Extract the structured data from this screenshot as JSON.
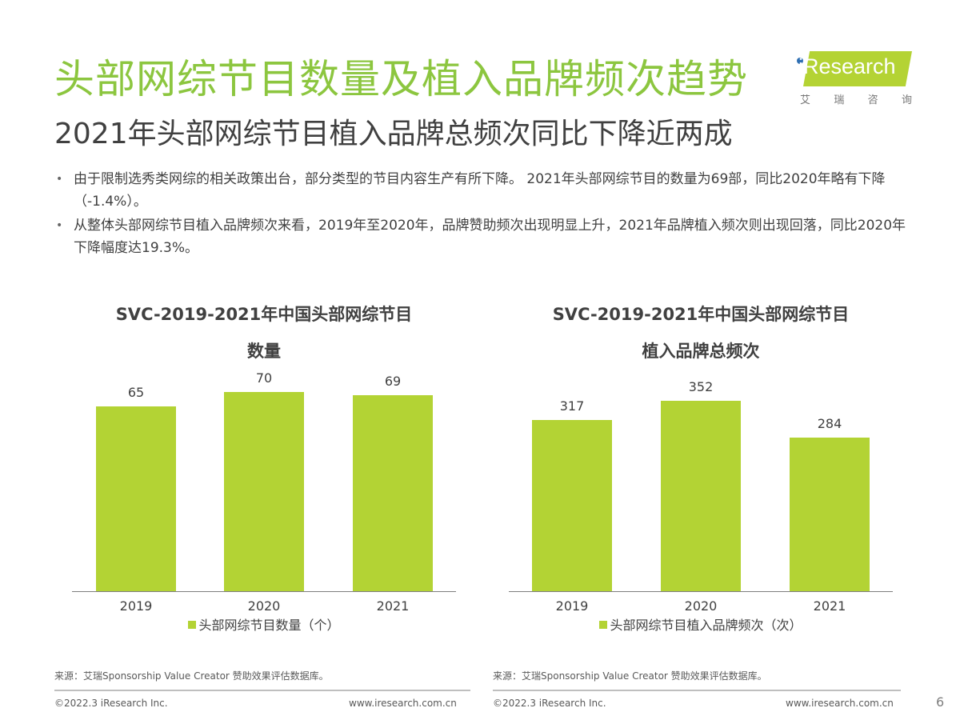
{
  "header": {
    "title": "头部网综节目数量及植入品牌频次趋势",
    "subtitle": "2021年头部网综节目植入品牌总频次同比下降近两成"
  },
  "logo": {
    "brand": "iResearch",
    "chinese_chars": [
      "艾",
      "瑞",
      "咨",
      "询"
    ]
  },
  "bullets": [
    "由于限制选秀类网综的相关政策出台，部分类型的节目内容生产有所下降。 2021年头部网综节目的数量为69部，同比2020年略有下降（-1.4%）。",
    "从整体头部网综节目植入品牌频次来看，2019年至2020年，品牌赞助频次出现明显上升，2021年品牌植入频次则出现回落，同比2020年下降幅度达19.3%。"
  ],
  "chart_data": [
    {
      "type": "bar",
      "title": "SVC-2019-2021年中国头部网综节目数量",
      "title_lines": [
        "SVC-2019-2021年中国头部网综节目",
        "数量"
      ],
      "categories": [
        "2019",
        "2020",
        "2021"
      ],
      "series": [
        {
          "name": "头部网综节目数量（个）",
          "values": [
            65,
            70,
            69
          ],
          "color": "#b3d334"
        }
      ],
      "values": [
        65,
        70,
        69
      ],
      "value_labels": [
        "65",
        "70",
        "69"
      ],
      "xlabel": "",
      "ylabel": "",
      "ylim": [
        0,
        76
      ],
      "grid": false,
      "legend_position": "bottom",
      "legend": "头部网综节目数量（个）"
    },
    {
      "type": "bar",
      "title": "SVC-2019-2021年中国头部网综节目植入品牌总频次",
      "title_lines": [
        "SVC-2019-2021年中国头部网综节目",
        "植入品牌总频次"
      ],
      "categories": [
        "2019",
        "2020",
        "2021"
      ],
      "series": [
        {
          "name": "头部网综节目植入品牌频次（次）",
          "values": [
            317,
            352,
            284
          ],
          "color": "#b3d334"
        }
      ],
      "values": [
        317,
        352,
        284
      ],
      "value_labels": [
        "317",
        "352",
        "284"
      ],
      "xlabel": "",
      "ylabel": "",
      "ylim": [
        0,
        400
      ],
      "grid": false,
      "legend_position": "bottom",
      "legend": "头部网综节目植入品牌频次（次）"
    }
  ],
  "footer": {
    "left_source": "来源：艾瑞Sponsorship Value Creator 赞助效果评估数据库。",
    "right_source": "来源：艾瑞Sponsorship Value Creator 赞助效果评估数据库。",
    "left_copyright": "©2022.3 iResearch Inc.",
    "left_url": "www.iresearch.com.cn",
    "right_copyright": "©2022.3 iResearch Inc.",
    "right_url": "www.iresearch.com.cn",
    "page_number": "6"
  },
  "colors": {
    "title_green": "#8cc63f",
    "bar_green": "#b3d334",
    "text": "#404040"
  }
}
